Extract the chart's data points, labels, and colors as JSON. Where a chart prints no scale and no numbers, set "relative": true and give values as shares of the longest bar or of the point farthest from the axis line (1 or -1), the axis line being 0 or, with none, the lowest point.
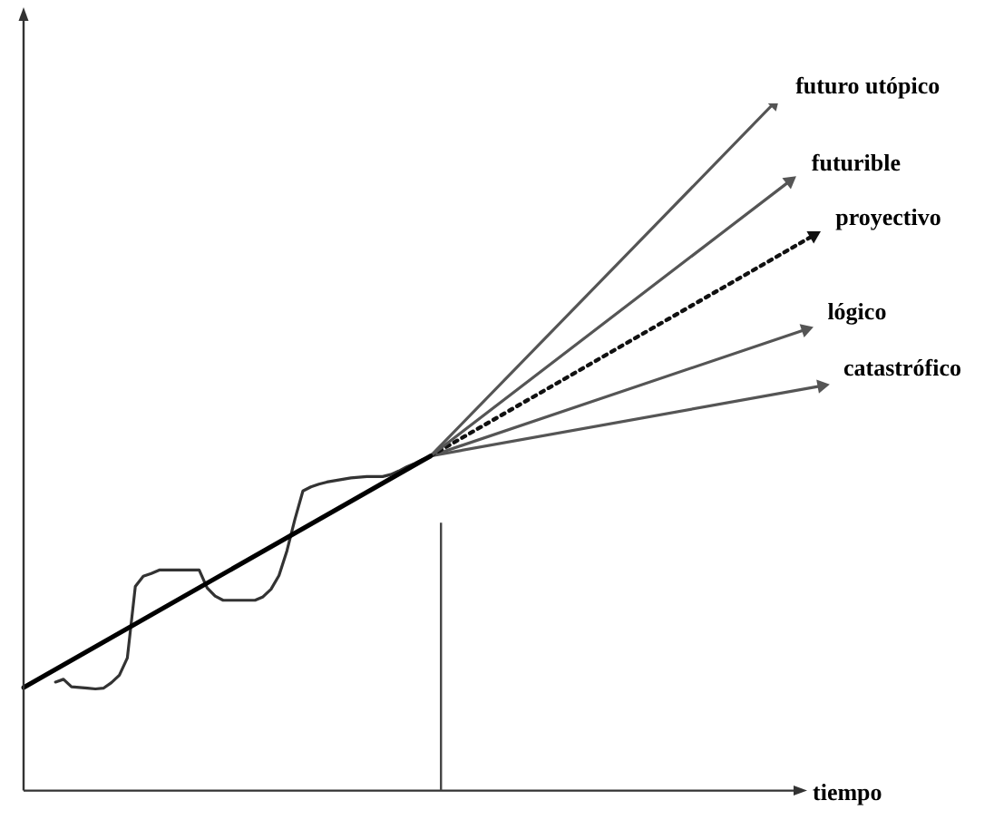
{
  "chart_data": {
    "type": "line",
    "relative": true,
    "xlabel": "tiempo",
    "marker": "none",
    "legend": false,
    "grid": false,
    "categories": [
      null,
      null,
      null,
      null,
      null,
      null,
      null,
      null,
      null,
      null,
      null,
      null,
      null,
      null,
      null,
      null,
      null,
      null,
      null,
      null,
      null,
      null,
      null,
      null,
      null,
      null,
      null,
      null,
      null,
      null,
      null,
      null,
      null,
      null,
      null,
      null,
      null,
      null,
      null,
      null,
      null,
      null,
      null,
      null,
      null,
      null,
      null,
      null,
      null,
      null,
      null,
      null,
      null,
      null,
      null,
      null,
      null,
      null,
      null,
      null,
      null,
      null,
      null,
      null,
      null,
      null,
      null,
      null,
      null,
      null,
      null,
      null,
      null,
      null,
      null,
      null,
      null,
      null,
      null,
      null,
      null,
      null,
      null,
      null,
      null,
      null,
      null,
      null,
      null,
      null,
      null,
      null,
      null,
      null,
      null,
      null,
      null,
      null,
      null,
      null,
      null
    ],
    "series": [
      {
        "color": "#000000",
        "line_style": "solid",
        "values": [
          0.15,
          null,
          null,
          null,
          null,
          null,
          null,
          null,
          null,
          null,
          null,
          null,
          null,
          null,
          null,
          null,
          null,
          null,
          null,
          null,
          null,
          null,
          null,
          null,
          null,
          null,
          null,
          null,
          null,
          null,
          null,
          null,
          null,
          null,
          null,
          null,
          null,
          null,
          null,
          null,
          null,
          null,
          null,
          null,
          null,
          null,
          null,
          null,
          null,
          null,
          null,
          0.487,
          null,
          null,
          null,
          null,
          null,
          null,
          null,
          null,
          null,
          null,
          null,
          null,
          null,
          null,
          null,
          null,
          null,
          null,
          null,
          null,
          null,
          null,
          null,
          null,
          null,
          null,
          null,
          null,
          null,
          null,
          null,
          null,
          null,
          null,
          null,
          null,
          null,
          null,
          null,
          null,
          null,
          null,
          null,
          null,
          null,
          null,
          null,
          null,
          null
        ]
      },
      {
        "color": "#333333",
        "line_style": "solid",
        "values": [
          null,
          null,
          null,
          null,
          0.158,
          0.162,
          0.151,
          0.15,
          0.149,
          0.148,
          0.149,
          0.157,
          0.168,
          0.193,
          0.297,
          0.312,
          0.316,
          0.321,
          0.321,
          0.321,
          0.321,
          0.321,
          0.321,
          0.295,
          0.283,
          0.277,
          0.277,
          0.277,
          0.277,
          0.277,
          0.282,
          0.293,
          0.313,
          0.349,
          0.395,
          0.436,
          0.442,
          0.446,
          0.449,
          0.451,
          0.453,
          0.455,
          0.456,
          0.457,
          0.457,
          0.457,
          0.46,
          0.465,
          0.471,
          0.476,
          0.482,
          0.487,
          null,
          null,
          null,
          null,
          null,
          null,
          null,
          null,
          null,
          null,
          null,
          null,
          null,
          null,
          null,
          null,
          null,
          null,
          null,
          null,
          null,
          null,
          null,
          null,
          null,
          null,
          null,
          null,
          null,
          null,
          null,
          null,
          null,
          null,
          null,
          null,
          null,
          null,
          null,
          null,
          null,
          null,
          null,
          null,
          null,
          null,
          null,
          null,
          null
        ]
      },
      {
        "name": "futuro utópico",
        "color": "#555555",
        "line_style": "solid",
        "marker": "triangle",
        "values": [
          null,
          null,
          null,
          null,
          null,
          null,
          null,
          null,
          null,
          null,
          null,
          null,
          null,
          null,
          null,
          null,
          null,
          null,
          null,
          null,
          null,
          null,
          null,
          null,
          null,
          null,
          null,
          null,
          null,
          null,
          null,
          null,
          null,
          null,
          null,
          null,
          null,
          null,
          null,
          null,
          null,
          null,
          null,
          null,
          null,
          null,
          null,
          null,
          null,
          null,
          null,
          0.487,
          null,
          null,
          null,
          null,
          null,
          null,
          null,
          null,
          null,
          null,
          null,
          null,
          null,
          null,
          null,
          null,
          null,
          null,
          null,
          null,
          null,
          null,
          null,
          null,
          null,
          null,
          null,
          null,
          null,
          null,
          null,
          null,
          null,
          null,
          null,
          null,
          null,
          null,
          null,
          null,
          null,
          null,
          1,
          null,
          null,
          null,
          null,
          null,
          null
        ]
      },
      {
        "name": "futurible",
        "color": "#555555",
        "line_style": "solid",
        "marker": "triangle",
        "values": [
          null,
          null,
          null,
          null,
          null,
          null,
          null,
          null,
          null,
          null,
          null,
          null,
          null,
          null,
          null,
          null,
          null,
          null,
          null,
          null,
          null,
          null,
          null,
          null,
          null,
          null,
          null,
          null,
          null,
          null,
          null,
          null,
          null,
          null,
          null,
          null,
          null,
          null,
          null,
          null,
          null,
          null,
          null,
          null,
          null,
          null,
          null,
          null,
          null,
          null,
          null,
          0.487,
          null,
          null,
          null,
          null,
          null,
          null,
          null,
          null,
          null,
          null,
          null,
          null,
          null,
          null,
          null,
          null,
          null,
          null,
          null,
          null,
          null,
          null,
          null,
          null,
          null,
          null,
          null,
          null,
          null,
          null,
          null,
          null,
          null,
          null,
          null,
          null,
          null,
          null,
          null,
          null,
          null,
          null,
          null,
          null,
          0.887,
          null,
          null,
          null,
          null
        ]
      },
      {
        "name": "proyectivo",
        "color": "#111111",
        "line_style": "dotted",
        "marker": "triangle",
        "values": [
          null,
          null,
          null,
          null,
          null,
          null,
          null,
          null,
          null,
          null,
          null,
          null,
          null,
          null,
          null,
          null,
          null,
          null,
          null,
          null,
          null,
          null,
          null,
          null,
          null,
          null,
          null,
          null,
          null,
          null,
          null,
          null,
          null,
          null,
          null,
          null,
          null,
          null,
          null,
          null,
          null,
          null,
          null,
          null,
          null,
          null,
          null,
          null,
          null,
          null,
          null,
          0.487,
          null,
          null,
          null,
          null,
          null,
          null,
          null,
          null,
          null,
          null,
          null,
          null,
          null,
          null,
          null,
          null,
          null,
          null,
          null,
          null,
          null,
          null,
          null,
          null,
          null,
          null,
          null,
          null,
          null,
          null,
          null,
          null,
          null,
          null,
          null,
          null,
          null,
          null,
          null,
          null,
          null,
          null,
          null,
          null,
          null,
          null,
          null,
          0.808,
          null
        ]
      },
      {
        "name": "lógico",
        "color": "#555555",
        "line_style": "solid",
        "marker": "triangle",
        "values": [
          null,
          null,
          null,
          null,
          null,
          null,
          null,
          null,
          null,
          null,
          null,
          null,
          null,
          null,
          null,
          null,
          null,
          null,
          null,
          null,
          null,
          null,
          null,
          null,
          null,
          null,
          null,
          null,
          null,
          null,
          null,
          null,
          null,
          null,
          null,
          null,
          null,
          null,
          null,
          null,
          null,
          null,
          null,
          null,
          null,
          null,
          null,
          null,
          null,
          null,
          null,
          0.487,
          null,
          null,
          null,
          null,
          null,
          null,
          null,
          null,
          null,
          null,
          null,
          null,
          null,
          null,
          null,
          null,
          null,
          null,
          null,
          null,
          null,
          null,
          null,
          null,
          null,
          null,
          null,
          null,
          null,
          null,
          null,
          null,
          null,
          null,
          null,
          null,
          null,
          null,
          null,
          null,
          null,
          null,
          null,
          null,
          null,
          null,
          0.671,
          null,
          null
        ]
      },
      {
        "name": "catastrófico",
        "color": "#555555",
        "line_style": "solid",
        "marker": "triangle",
        "values": [
          null,
          null,
          null,
          null,
          null,
          null,
          null,
          null,
          null,
          null,
          null,
          null,
          null,
          null,
          null,
          null,
          null,
          null,
          null,
          null,
          null,
          null,
          null,
          null,
          null,
          null,
          null,
          null,
          null,
          null,
          null,
          null,
          null,
          null,
          null,
          null,
          null,
          null,
          null,
          null,
          null,
          null,
          null,
          null,
          null,
          null,
          null,
          null,
          null,
          null,
          null,
          0.487,
          null,
          null,
          null,
          null,
          null,
          null,
          null,
          null,
          null,
          null,
          null,
          null,
          null,
          null,
          null,
          null,
          null,
          null,
          null,
          null,
          null,
          null,
          null,
          null,
          null,
          null,
          null,
          null,
          null,
          null,
          null,
          null,
          null,
          null,
          null,
          null,
          null,
          null,
          null,
          null,
          null,
          null,
          null,
          null,
          null,
          null,
          null,
          null,
          0.589
        ]
      }
    ]
  }
}
